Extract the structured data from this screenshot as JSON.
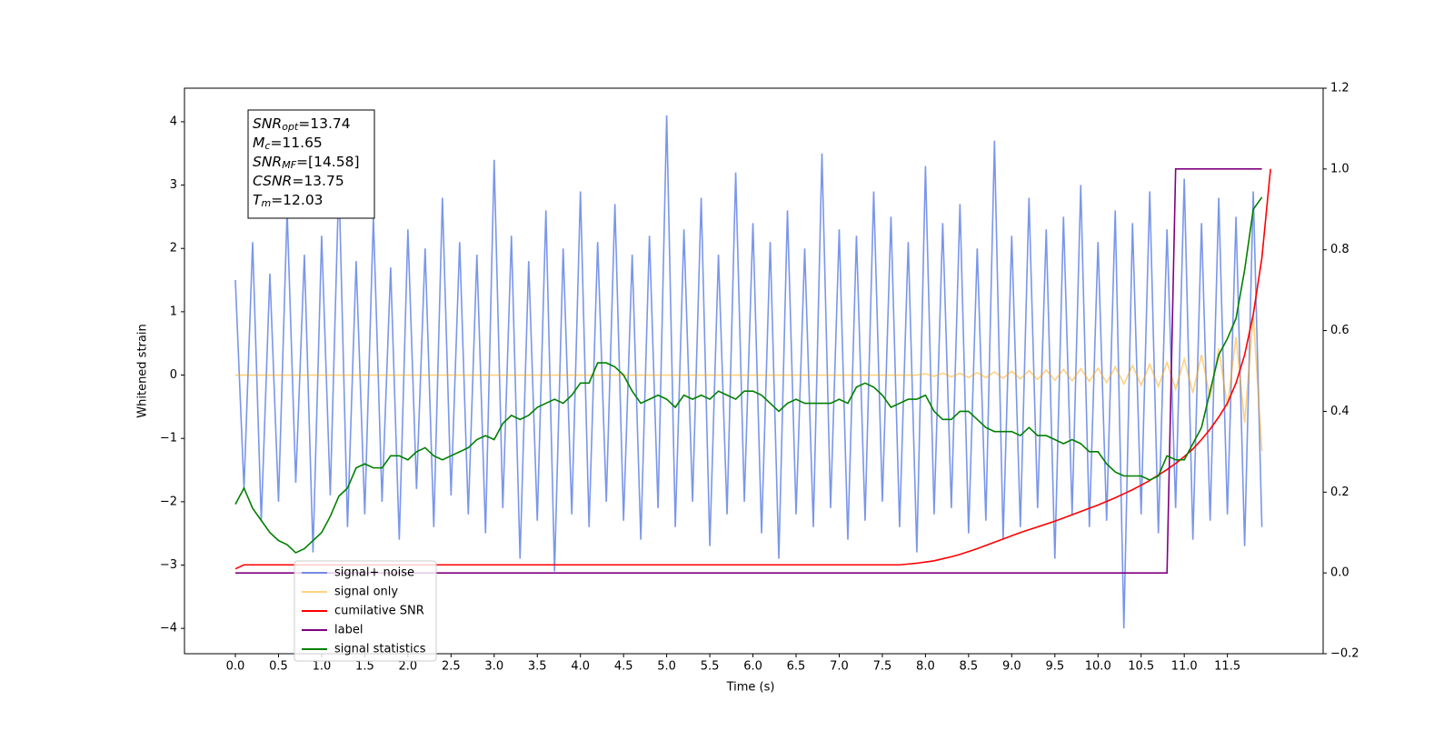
{
  "chart_data": {
    "type": "line",
    "xlabel": "Time (s)",
    "ylabel": "Whitened strain",
    "x": [
      0,
      0.1,
      0.2,
      0.3,
      0.4,
      0.5,
      0.6,
      0.7,
      0.8,
      0.9,
      1.0,
      1.1,
      1.2,
      1.3,
      1.4,
      1.5,
      1.6,
      1.7,
      1.8,
      1.9,
      2.0,
      2.1,
      2.2,
      2.3,
      2.4,
      2.5,
      2.6,
      2.7,
      2.8,
      2.9,
      3.0,
      3.1,
      3.2,
      3.3,
      3.4,
      3.5,
      3.6,
      3.7,
      3.8,
      3.9,
      4.0,
      4.1,
      4.2,
      4.3,
      4.4,
      4.5,
      4.6,
      4.7,
      4.8,
      4.9,
      5.0,
      5.1,
      5.2,
      5.3,
      5.4,
      5.5,
      5.6,
      5.7,
      5.8,
      5.9,
      6.0,
      6.1,
      6.2,
      6.3,
      6.4,
      6.5,
      6.6,
      6.7,
      6.8,
      6.9,
      7.0,
      7.1,
      7.2,
      7.3,
      7.4,
      7.5,
      7.6,
      7.7,
      7.8,
      7.9,
      8.0,
      8.1,
      8.2,
      8.3,
      8.4,
      8.5,
      8.6,
      8.7,
      8.8,
      8.9,
      9.0,
      9.1,
      9.2,
      9.3,
      9.4,
      9.5,
      9.6,
      9.7,
      9.8,
      9.9,
      10.0,
      10.1,
      10.2,
      10.3,
      10.4,
      10.5,
      10.6,
      10.7,
      10.8,
      10.9,
      11.0,
      11.1,
      11.2,
      11.3,
      11.4,
      11.5,
      11.6,
      11.7,
      11.8,
      11.9,
      12.0
    ],
    "series": [
      {
        "name": "signal+ noise",
        "color": "#4169e1",
        "alpha": 0.7,
        "axis": "y",
        "values": [
          1.5,
          -1.8,
          2.1,
          -2.3,
          1.6,
          -2.0,
          2.6,
          -1.7,
          1.9,
          -2.8,
          2.2,
          -1.9,
          3.1,
          -2.4,
          1.8,
          -2.2,
          2.5,
          -2.0,
          1.7,
          -2.6,
          2.3,
          -1.8,
          2.0,
          -2.4,
          2.8,
          -1.9,
          2.1,
          -2.2,
          1.9,
          -2.5,
          3.4,
          -2.1,
          2.2,
          -2.9,
          1.8,
          -2.3,
          2.6,
          -3.1,
          2.0,
          -2.2,
          2.9,
          -2.4,
          2.1,
          -2.0,
          2.7,
          -2.3,
          1.9,
          -2.6,
          2.2,
          -2.1,
          4.1,
          -2.4,
          2.3,
          -2.0,
          2.8,
          -2.7,
          1.9,
          -2.2,
          3.2,
          -2.0,
          2.4,
          -2.5,
          2.1,
          -2.9,
          2.6,
          -2.2,
          2.0,
          -2.4,
          3.5,
          -2.1,
          2.3,
          -2.6,
          2.2,
          -2.3,
          2.9,
          -2.0,
          2.5,
          -2.4,
          2.1,
          -2.8,
          3.3,
          -2.2,
          2.4,
          -2.1,
          2.7,
          -2.5,
          2.0,
          -2.3,
          3.7,
          -2.6,
          2.2,
          -2.4,
          2.8,
          -2.1,
          2.3,
          -2.9,
          2.5,
          -2.2,
          3.0,
          -2.4,
          2.1,
          -2.3,
          2.6,
          -4.0,
          2.4,
          -2.2,
          2.9,
          -2.5,
          2.3,
          -2.1,
          3.1,
          -2.6,
          2.4,
          -2.3,
          2.8,
          -2.2,
          2.5,
          -2.7,
          2.9,
          -2.4,
          null
        ]
      },
      {
        "name": "signal only",
        "color": "#ffa500",
        "alpha": 0.5,
        "axis": "y",
        "values": [
          0,
          0,
          0,
          0,
          0,
          0,
          0,
          0,
          0,
          0,
          0,
          0,
          0,
          0,
          0,
          0,
          0,
          0,
          0,
          0,
          0,
          0,
          0,
          0,
          0,
          0,
          0,
          0,
          0,
          0,
          0,
          0,
          0,
          0,
          0,
          0,
          0,
          0,
          0,
          0,
          0,
          0,
          0,
          0,
          0,
          0,
          0,
          0,
          0,
          0,
          0,
          0,
          0,
          0,
          0,
          0,
          0,
          0,
          0,
          0,
          0,
          0,
          0,
          0,
          0,
          0,
          0,
          0,
          0,
          0,
          0,
          0,
          0,
          0,
          0,
          0,
          0,
          0,
          0,
          0,
          0.02,
          -0.02,
          0.03,
          -0.03,
          0.03,
          -0.04,
          0.04,
          -0.04,
          0.05,
          -0.05,
          0.06,
          -0.06,
          0.07,
          -0.07,
          0.08,
          -0.08,
          0.09,
          -0.09,
          0.1,
          -0.1,
          0.11,
          -0.12,
          0.13,
          -0.14,
          0.15,
          -0.16,
          0.17,
          -0.18,
          0.2,
          -0.22,
          0.25,
          -0.28,
          0.32,
          -0.36,
          0.42,
          -0.5,
          0.6,
          -0.75,
          0.95,
          -1.2,
          null
        ]
      },
      {
        "name": "cumilative SNR",
        "color": "#ff0000",
        "alpha": 1,
        "axis": "y2",
        "values": [
          0.01,
          0.02,
          0.02,
          0.02,
          0.02,
          0.02,
          0.02,
          0.02,
          0.02,
          0.02,
          0.02,
          0.02,
          0.02,
          0.02,
          0.02,
          0.02,
          0.02,
          0.02,
          0.02,
          0.02,
          0.02,
          0.02,
          0.02,
          0.02,
          0.02,
          0.02,
          0.02,
          0.02,
          0.02,
          0.02,
          0.02,
          0.02,
          0.02,
          0.02,
          0.02,
          0.02,
          0.02,
          0.02,
          0.02,
          0.02,
          0.02,
          0.02,
          0.02,
          0.02,
          0.02,
          0.02,
          0.02,
          0.02,
          0.02,
          0.02,
          0.02,
          0.02,
          0.02,
          0.02,
          0.02,
          0.02,
          0.02,
          0.02,
          0.02,
          0.02,
          0.02,
          0.02,
          0.02,
          0.02,
          0.02,
          0.02,
          0.02,
          0.02,
          0.02,
          0.02,
          0.02,
          0.02,
          0.02,
          0.02,
          0.02,
          0.02,
          0.02,
          0.02,
          0.022,
          0.024,
          0.027,
          0.03,
          0.035,
          0.04,
          0.046,
          0.053,
          0.06,
          0.068,
          0.076,
          0.084,
          0.092,
          0.1,
          0.107,
          0.114,
          0.121,
          0.128,
          0.136,
          0.144,
          0.152,
          0.16,
          0.168,
          0.177,
          0.186,
          0.196,
          0.206,
          0.217,
          0.229,
          0.242,
          0.256,
          0.271,
          0.288,
          0.307,
          0.33,
          0.356,
          0.386,
          0.42,
          0.47,
          0.54,
          0.64,
          0.78,
          1.0
        ]
      },
      {
        "name": "label",
        "color": "#800080",
        "alpha": 1,
        "axis": "y2",
        "values": [
          0,
          0,
          0,
          0,
          0,
          0,
          0,
          0,
          0,
          0,
          0,
          0,
          0,
          0,
          0,
          0,
          0,
          0,
          0,
          0,
          0,
          0,
          0,
          0,
          0,
          0,
          0,
          0,
          0,
          0,
          0,
          0,
          0,
          0,
          0,
          0,
          0,
          0,
          0,
          0,
          0,
          0,
          0,
          0,
          0,
          0,
          0,
          0,
          0,
          0,
          0,
          0,
          0,
          0,
          0,
          0,
          0,
          0,
          0,
          0,
          0,
          0,
          0,
          0,
          0,
          0,
          0,
          0,
          0,
          0,
          0,
          0,
          0,
          0,
          0,
          0,
          0,
          0,
          0,
          0,
          0,
          0,
          0,
          0,
          0,
          0,
          0,
          0,
          0,
          0,
          0,
          0,
          0,
          0,
          0,
          0,
          0,
          0,
          0,
          0,
          0,
          0,
          0,
          0,
          0,
          0,
          0,
          0,
          0,
          1,
          1,
          1,
          1,
          1,
          1,
          1,
          1,
          1,
          1,
          1,
          null
        ]
      },
      {
        "name": "signal statistics",
        "color": "#008000",
        "alpha": 1,
        "axis": "y2",
        "values": [
          0.17,
          0.21,
          0.16,
          0.13,
          0.1,
          0.08,
          0.07,
          0.05,
          0.06,
          0.08,
          0.1,
          0.14,
          0.19,
          0.21,
          0.26,
          0.27,
          0.26,
          0.26,
          0.29,
          0.29,
          0.28,
          0.3,
          0.31,
          0.29,
          0.28,
          0.29,
          0.3,
          0.31,
          0.33,
          0.34,
          0.33,
          0.37,
          0.39,
          0.38,
          0.39,
          0.41,
          0.42,
          0.43,
          0.42,
          0.44,
          0.47,
          0.47,
          0.52,
          0.52,
          0.51,
          0.49,
          0.45,
          0.42,
          0.43,
          0.44,
          0.43,
          0.41,
          0.44,
          0.43,
          0.44,
          0.43,
          0.45,
          0.44,
          0.43,
          0.45,
          0.45,
          0.44,
          0.42,
          0.4,
          0.42,
          0.43,
          0.42,
          0.42,
          0.42,
          0.42,
          0.43,
          0.42,
          0.46,
          0.47,
          0.46,
          0.44,
          0.41,
          0.42,
          0.43,
          0.43,
          0.44,
          0.4,
          0.38,
          0.38,
          0.4,
          0.4,
          0.38,
          0.36,
          0.35,
          0.35,
          0.35,
          0.34,
          0.36,
          0.34,
          0.34,
          0.33,
          0.32,
          0.33,
          0.32,
          0.3,
          0.3,
          0.27,
          0.25,
          0.24,
          0.24,
          0.24,
          0.23,
          0.24,
          0.29,
          0.28,
          0.28,
          0.32,
          0.36,
          0.45,
          0.54,
          0.58,
          0.63,
          0.75,
          0.9,
          0.93,
          null
        ]
      }
    ],
    "xlim": [
      -0.59,
      12.61
    ],
    "ylim": [
      -4.4,
      4.53
    ],
    "y2lim": [
      -0.2,
      1.2
    ],
    "xticks": [
      {
        "value": 0,
        "label": "0.0"
      },
      {
        "value": 0.5,
        "label": "0.5"
      },
      {
        "value": 1,
        "label": "1.0"
      },
      {
        "value": 1.5,
        "label": "1.5"
      },
      {
        "value": 2,
        "label": "2.0"
      },
      {
        "value": 2.5,
        "label": "2.5"
      },
      {
        "value": 3,
        "label": "3.0"
      },
      {
        "value": 3.5,
        "label": "3.5"
      },
      {
        "value": 4,
        "label": "4.0"
      },
      {
        "value": 4.5,
        "label": "4.5"
      },
      {
        "value": 5,
        "label": "5.0"
      },
      {
        "value": 5.5,
        "label": "5.5"
      },
      {
        "value": 6,
        "label": "6.0"
      },
      {
        "value": 6.5,
        "label": "6.5"
      },
      {
        "value": 7,
        "label": "7.0"
      },
      {
        "value": 7.5,
        "label": "7.5"
      },
      {
        "value": 8,
        "label": "8.0"
      },
      {
        "value": 8.5,
        "label": "8.5"
      },
      {
        "value": 9,
        "label": "9.0"
      },
      {
        "value": 9.5,
        "label": "9.5"
      },
      {
        "value": 10,
        "label": "10.0"
      },
      {
        "value": 10.5,
        "label": "10.5"
      },
      {
        "value": 11,
        "label": "11.0"
      },
      {
        "value": 11.5,
        "label": "11.5"
      }
    ],
    "yticks": [
      {
        "value": -4,
        "label": "−4"
      },
      {
        "value": -3,
        "label": "−3"
      },
      {
        "value": -2,
        "label": "−2"
      },
      {
        "value": -1,
        "label": "−1"
      },
      0,
      1,
      2,
      3,
      4
    ],
    "y2ticks": [
      {
        "value": -0.2,
        "label": "−0.2"
      },
      {
        "value": 0,
        "label": "0.0"
      },
      {
        "value": 0.2,
        "label": "0.2"
      },
      {
        "value": 0.4,
        "label": "0.4"
      },
      {
        "value": 0.6,
        "label": "0.6"
      },
      {
        "value": 0.8,
        "label": "0.8"
      },
      {
        "value": 1,
        "label": "1.0"
      },
      {
        "value": 1.2,
        "label": "1.2"
      }
    ],
    "grid": false,
    "legend_loc": "lower left",
    "text_box": [
      {
        "base": "SNR",
        "sub": "opt",
        "rest": "=13.74"
      },
      {
        "base": "M",
        "sub": "c",
        "rest": "=11.65"
      },
      {
        "base": "SNR",
        "sub": "MF",
        "rest": "=[14.58]"
      },
      {
        "base": "CSNR",
        "rest": "=13.75"
      },
      {
        "base": "T",
        "sub": "m",
        "rest": "=12.03"
      }
    ]
  }
}
